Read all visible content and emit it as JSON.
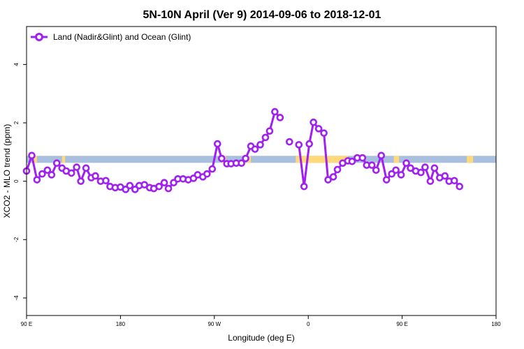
{
  "chart_data": {
    "type": "line",
    "title": "5N-10N April (Ver 9)   2014-09-06 to 2018-12-01",
    "xlabel": "Longitude (deg E)",
    "ylabel": "XCO2 - MLO trend (ppm)",
    "x_ticks": [
      {
        "value": 90,
        "label": "90 E"
      },
      {
        "value": 180,
        "label": "180"
      },
      {
        "value": 270,
        "label": "90 W"
      },
      {
        "value": 360,
        "label": "0"
      },
      {
        "value": 450,
        "label": "90 E"
      },
      {
        "value": 540,
        "label": "180"
      }
    ],
    "y_ticks": [
      {
        "value": -4,
        "label": "-4"
      },
      {
        "value": -2,
        "label": "-2"
      },
      {
        "value": 0,
        "label": "0"
      },
      {
        "value": 2,
        "label": "2"
      },
      {
        "value": 4,
        "label": "4"
      }
    ],
    "xlim": [
      90,
      540
    ],
    "ylim": [
      -4.6,
      5.3
    ],
    "legend": {
      "position": "top-left",
      "label": "Land (Nadir&Glint) and Ocean (Glint)"
    },
    "series_color": "#a020f0",
    "land_ocean_band": {
      "y_range": [
        0.63,
        0.87
      ],
      "ocean_color": "#a8bfdd",
      "land_color": "#ffd97a",
      "land_segments": [
        [
          97,
          100
        ],
        [
          124,
          127
        ],
        [
          277,
          281
        ],
        [
          301,
          305
        ],
        [
          348,
          398
        ],
        [
          442,
          447
        ],
        [
          512,
          518
        ]
      ]
    },
    "series": [
      {
        "name": "Land (Nadir&Glint) and Ocean (Glint)",
        "segments": [
          [
            [
              90,
              0.35
            ],
            [
              95,
              0.88
            ],
            [
              100,
              0.05
            ],
            [
              105,
              0.25
            ],
            [
              110,
              0.38
            ],
            [
              114,
              0.22
            ],
            [
              119,
              0.62
            ],
            [
              124,
              0.45
            ],
            [
              128,
              0.35
            ],
            [
              133,
              0.28
            ],
            [
              138,
              0.48
            ],
            [
              142,
              0.0
            ],
            [
              147,
              0.45
            ],
            [
              152,
              0.12
            ],
            [
              156,
              0.18
            ],
            [
              161,
              0.0
            ],
            [
              166,
              0.02
            ],
            [
              170,
              -0.18
            ],
            [
              175,
              -0.22
            ],
            [
              180,
              -0.2
            ],
            [
              185,
              -0.28
            ],
            [
              189,
              -0.15
            ],
            [
              194,
              -0.28
            ],
            [
              198,
              -0.15
            ],
            [
              203,
              -0.12
            ],
            [
              208,
              -0.22
            ],
            [
              212,
              -0.25
            ],
            [
              217,
              -0.18
            ],
            [
              222,
              -0.05
            ],
            [
              226,
              -0.25
            ],
            [
              231,
              -0.05
            ],
            [
              235,
              0.08
            ],
            [
              240,
              0.08
            ],
            [
              245,
              0.05
            ],
            [
              250,
              0.1
            ],
            [
              254,
              0.22
            ],
            [
              259,
              0.15
            ],
            [
              263,
              0.25
            ],
            [
              268,
              0.42
            ],
            [
              273,
              1.28
            ],
            [
              277,
              0.78
            ],
            [
              282,
              0.6
            ],
            [
              286,
              0.6
            ],
            [
              291,
              0.62
            ],
            [
              296,
              0.62
            ],
            [
              300,
              0.78
            ],
            [
              305,
              1.2
            ],
            [
              309,
              1.1
            ],
            [
              314,
              1.25
            ],
            [
              319,
              1.5
            ],
            [
              323,
              1.72
            ],
            [
              328,
              2.38
            ],
            [
              333,
              2.18
            ]
          ],
          [
            [
              342,
              1.35
            ]
          ],
          [
            [
              351,
              1.25
            ],
            [
              356,
              -0.18
            ],
            [
              361,
              1.28
            ],
            [
              365,
              2.02
            ],
            [
              370,
              1.8
            ],
            [
              375,
              1.65
            ],
            [
              379,
              0.05
            ],
            [
              384,
              0.15
            ],
            [
              388,
              0.4
            ],
            [
              393,
              0.62
            ],
            [
              398,
              0.7
            ],
            [
              402,
              0.68
            ],
            [
              407,
              0.8
            ],
            [
              412,
              0.8
            ],
            [
              416,
              0.55
            ],
            [
              421,
              0.55
            ],
            [
              425,
              0.38
            ],
            [
              430,
              0.88
            ],
            [
              435,
              0.05
            ],
            [
              440,
              0.25
            ],
            [
              444,
              0.38
            ],
            [
              449,
              0.22
            ],
            [
              454,
              0.62
            ],
            [
              458,
              0.45
            ],
            [
              463,
              0.35
            ],
            [
              468,
              0.3
            ],
            [
              472,
              0.48
            ],
            [
              477,
              0.0
            ],
            [
              481,
              0.45
            ],
            [
              486,
              0.12
            ],
            [
              491,
              0.18
            ],
            [
              495,
              0.0
            ],
            [
              500,
              0.02
            ],
            [
              505,
              -0.18
            ]
          ]
        ]
      }
    ]
  }
}
